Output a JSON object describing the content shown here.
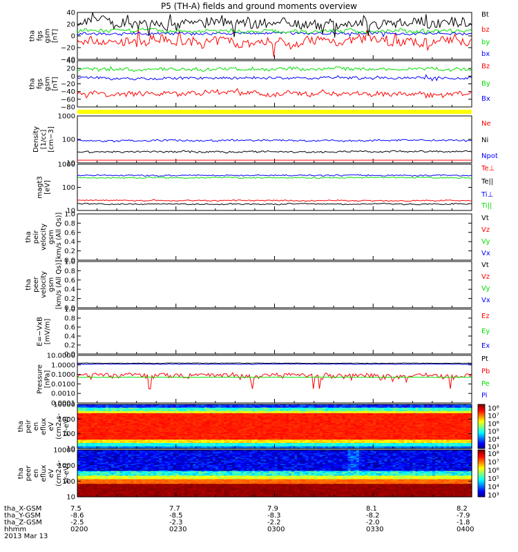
{
  "title": "P5 (TH-A) fields and ground moments overview",
  "colors": {
    "black": "#000000",
    "red": "#ff0000",
    "green": "#00e000",
    "blue": "#0000ff",
    "yellow": "#ffff00"
  },
  "chart_data": [
    {
      "type": "line",
      "id": "p1",
      "ylabel": [
        "tha",
        "fgs",
        "gsm",
        "[nT]"
      ],
      "ylim": [
        -40,
        40
      ],
      "yticks": [
        "40",
        "20",
        "0",
        "−20",
        "−40"
      ],
      "series": [
        {
          "name": "Bt",
          "color": "#000000"
        },
        {
          "name": "bz",
          "color": "#ff0000"
        },
        {
          "name": "by",
          "color": "#00e000"
        },
        {
          "name": "bx",
          "color": "#0000ff"
        }
      ]
    },
    {
      "type": "line",
      "id": "p2",
      "ylabel": [
        "tha",
        "fgs",
        "gsm",
        "[nT]"
      ],
      "ylim": [
        -80,
        40
      ],
      "yticks": [
        "40",
        "20",
        "0",
        "−20",
        "−40",
        "−60",
        "−80"
      ],
      "series": [
        {
          "name": "Bz",
          "color": "#ff0000"
        },
        {
          "name": "By",
          "color": "#00e000"
        },
        {
          "name": "Bx",
          "color": "#0000ff"
        }
      ]
    },
    {
      "type": "line",
      "id": "p3",
      "ylabel": [
        "Density",
        "[1/cc]",
        "[cm−3]"
      ],
      "log": true,
      "ylim": [
        10,
        1000
      ],
      "yticks": [
        "1000",
        "100",
        "10"
      ],
      "series": [
        {
          "name": "Ne",
          "color": "#ff0000"
        },
        {
          "name": "Ni",
          "color": "#000000"
        },
        {
          "name": "Npot",
          "color": "#0000ff"
        }
      ]
    },
    {
      "type": "line",
      "id": "p4",
      "ylabel": [
        "magt3",
        "[eV]"
      ],
      "log": true,
      "ylim": [
        10,
        1000
      ],
      "yticks": [
        "1000",
        "100",
        "10"
      ],
      "series": [
        {
          "name": "Te⊥",
          "color": "#ff0000"
        },
        {
          "name": "Te||",
          "color": "#000000"
        },
        {
          "name": "Ti⊥",
          "color": "#0000ff"
        },
        {
          "name": "Ti||",
          "color": "#00e000"
        }
      ]
    },
    {
      "type": "line",
      "id": "p5",
      "ylabel": [
        "tha",
        "peir",
        "velocity",
        "gsm",
        "[km/s (All Qs)]"
      ],
      "ylim": [
        0,
        1
      ],
      "yticks": [
        "1.0",
        "0.8",
        "0.6",
        "0.4",
        "0.2",
        "0.0"
      ],
      "series": [
        {
          "name": "Vt",
          "color": "#000000"
        },
        {
          "name": "Vz",
          "color": "#ff0000"
        },
        {
          "name": "Vy",
          "color": "#00e000"
        },
        {
          "name": "Vx",
          "color": "#0000ff"
        }
      ]
    },
    {
      "type": "line",
      "id": "p6",
      "ylabel": [
        "tha",
        "peer",
        "velocity",
        "gsm",
        "[km/s (All Qs)]"
      ],
      "ylim": [
        0,
        1
      ],
      "yticks": [
        "1.0",
        "0.8",
        "0.6",
        "0.4",
        "0.2",
        "0.0"
      ],
      "series": [
        {
          "name": "Vt",
          "color": "#000000"
        },
        {
          "name": "Vz",
          "color": "#ff0000"
        },
        {
          "name": "Vy",
          "color": "#00e000"
        },
        {
          "name": "Vx",
          "color": "#0000ff"
        }
      ]
    },
    {
      "type": "line",
      "id": "p7",
      "ylabel": [
        "E=−VxB",
        "[mV/m]"
      ],
      "ylim": [
        0,
        1
      ],
      "yticks": [
        "1.0",
        "0.8",
        "0.6",
        "0.4",
        "0.2",
        "0.0"
      ],
      "series": [
        {
          "name": "Ez",
          "color": "#ff0000"
        },
        {
          "name": "Ey",
          "color": "#00e000"
        },
        {
          "name": "Ex",
          "color": "#0000ff"
        }
      ]
    },
    {
      "type": "line",
      "id": "p8",
      "ylabel": [
        "Pressure",
        "[nPa]"
      ],
      "log": true,
      "ylim": [
        0.0001,
        10
      ],
      "yticks": [
        "10.0000",
        "1.0000",
        "0.1000",
        "0.0100",
        "0.0010",
        "0.0001"
      ],
      "series": [
        {
          "name": "Pt",
          "color": "#000000"
        },
        {
          "name": "Pb",
          "color": "#ff0000"
        },
        {
          "name": "Pe",
          "color": "#00e000"
        },
        {
          "name": "Pi",
          "color": "#0000ff"
        }
      ]
    },
    {
      "type": "heatmap",
      "id": "p9",
      "ylabel": [
        "tha",
        "peir",
        "en",
        "eflux",
        "eV",
        "(cm2-s-",
        "sr-eV)"
      ],
      "log": true,
      "ylim": [
        7,
        20000
      ],
      "yticks": [
        "10000",
        "1000",
        "100",
        "10"
      ],
      "colorbar": {
        "min_exp": 3,
        "max_exp": 8,
        "labels": [
          "10⁸",
          "10⁷",
          "10⁶",
          "10⁵",
          "10⁴",
          "10³"
        ]
      }
    },
    {
      "type": "heatmap",
      "id": "p10",
      "ylabel": [
        "tha",
        "peer",
        "en",
        "eflux",
        "eV",
        "(cm2-s-",
        "sr-eV)"
      ],
      "log": true,
      "ylim": [
        7,
        20000
      ],
      "yticks": [
        "10000",
        "1000",
        "100",
        "10"
      ],
      "colorbar": {
        "min_exp": 3,
        "max_exp": 8,
        "labels": [
          "10⁸",
          "10⁷",
          "10⁶",
          "10⁵",
          "10⁴",
          "10³"
        ]
      }
    }
  ],
  "xaxis": {
    "rows": [
      {
        "label": "tha_X-GSM",
        "values": [
          "7.5",
          "7.7",
          "7.9",
          "8.1",
          "8.2"
        ]
      },
      {
        "label": "tha_Y-GSM",
        "values": [
          "-8.6",
          "-8.5",
          "-8.3",
          "-8.2",
          "-7.9"
        ]
      },
      {
        "label": "tha_Z-GSM",
        "values": [
          "-2.5",
          "-2.3",
          "-2.2",
          "-2.0",
          "-1.8"
        ]
      },
      {
        "label": "hhmm",
        "values": [
          "0200",
          "0230",
          "0300",
          "0330",
          "0400"
        ]
      }
    ],
    "date": "2013 Mar 13"
  }
}
